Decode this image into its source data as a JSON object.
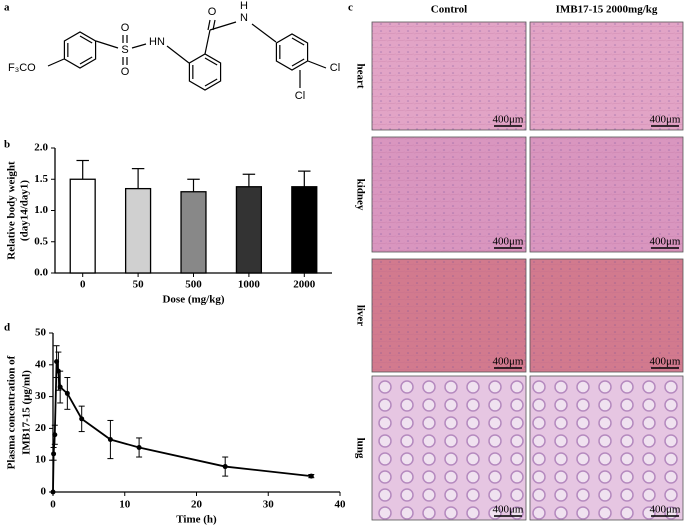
{
  "panel_labels": [
    "a",
    "b",
    "c",
    "d"
  ],
  "structure": {
    "atoms": [
      "F₃CO",
      "S",
      "O",
      "O",
      "HN",
      "O",
      "N",
      "H",
      "Cl",
      "Cl"
    ]
  },
  "histology": {
    "columns": [
      "Control",
      "IMB17-15 2000mg/kg"
    ],
    "rows": [
      "heart",
      "kidney",
      "liver",
      "lung"
    ],
    "scale_bar": "400μm"
  },
  "chart_data": [
    {
      "type": "bar",
      "categories": [
        "0",
        "50",
        "500",
        "1000",
        "2000"
      ],
      "values": [
        1.5,
        1.35,
        1.3,
        1.38,
        1.38
      ],
      "errors": [
        0.3,
        0.32,
        0.2,
        0.2,
        0.25
      ],
      "colors": [
        "#ffffff",
        "#d0d0d0",
        "#888888",
        "#333333",
        "#000000"
      ],
      "xlabel": "Dose (mg/kg)",
      "ylabel": [
        "Relative body weight",
        "(day14/day1)"
      ],
      "ylim": [
        0,
        2.0
      ],
      "yticks": [
        {
          "value": 0,
          "label": "0.0"
        },
        {
          "value": 0.5,
          "label": "0.5"
        },
        {
          "value": 1.0,
          "label": "1.0"
        },
        {
          "value": 1.5,
          "label": "1.5"
        },
        {
          "value": 2.0,
          "label": "2.0"
        }
      ]
    },
    {
      "type": "line",
      "x": [
        0,
        0.083,
        0.25,
        0.5,
        0.75,
        1,
        2,
        4,
        8,
        12,
        24,
        36
      ],
      "values": [
        0,
        12,
        18,
        41,
        38,
        33,
        31,
        23,
        16.5,
        14,
        8,
        5
      ],
      "errors": [
        0,
        2,
        3,
        5,
        6,
        5,
        5,
        4,
        6,
        3,
        3,
        0.5
      ],
      "color": "#000000",
      "xlabel": "Time (h)",
      "ylabel": [
        "Plasma concentration of",
        "IMB17-15 (μg/ml)"
      ],
      "xlim": [
        0,
        40
      ],
      "xticks": [
        0,
        10,
        20,
        30,
        40
      ],
      "ylim": [
        0,
        50
      ],
      "yticks": [
        0,
        10,
        20,
        30,
        40,
        50
      ]
    }
  ]
}
